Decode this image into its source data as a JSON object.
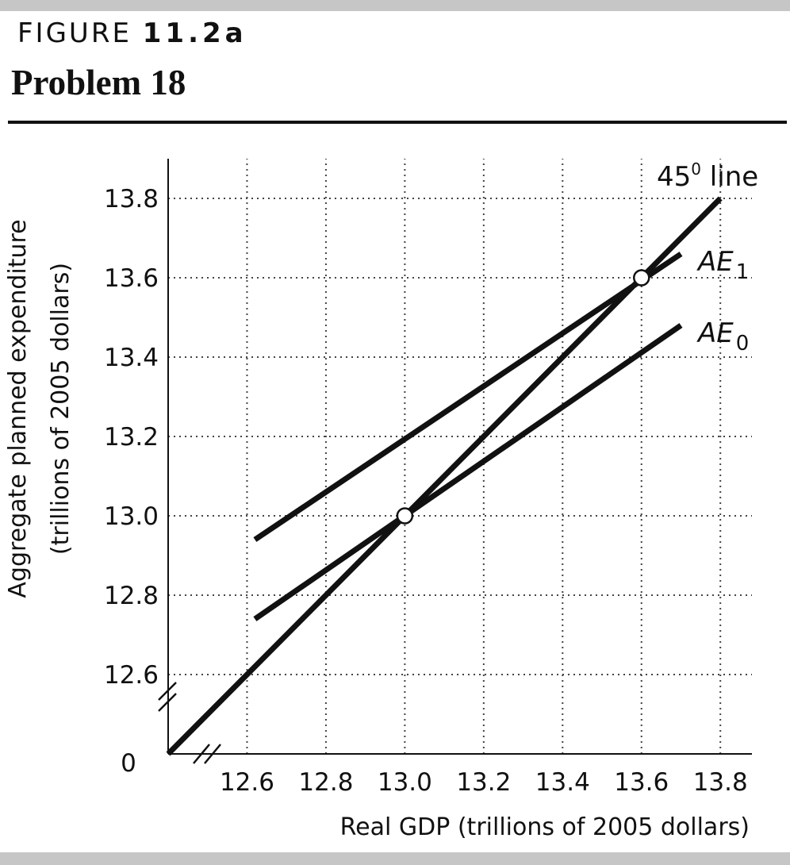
{
  "figure": {
    "label_prefix": "FIGURE",
    "label_number": "11.2a",
    "problem": "Problem 18"
  },
  "chart_data": {
    "type": "line",
    "xlabel": "Real GDP (trillions of 2005 dollars)",
    "ylabel": "Aggregate planned expenditure",
    "ylabel_sub": "(trillions of 2005 dollars)",
    "origin_label": "0",
    "x_ticks": [
      12.6,
      12.8,
      13.0,
      13.2,
      13.4,
      13.6,
      13.8
    ],
    "x_tick_labels": [
      "12.6",
      "12.8",
      "13.0",
      "13.2",
      "13.4",
      "13.6",
      "13.8"
    ],
    "y_ticks": [
      12.6,
      12.8,
      13.0,
      13.2,
      13.4,
      13.6,
      13.8
    ],
    "y_tick_labels": [
      "12.6",
      "12.8",
      "13.0",
      "13.2",
      "13.4",
      "13.6",
      "13.8"
    ],
    "xlim": [
      12.4,
      13.88
    ],
    "ylim": [
      12.4,
      13.9
    ],
    "axis_breaks": true,
    "grid": "dotted",
    "series": [
      {
        "name": "45° line",
        "label_main": "45",
        "label_sup": "0",
        "label_rest": " line",
        "x": [
          12.4,
          13.8
        ],
        "y": [
          12.4,
          13.8
        ]
      },
      {
        "name": "AE1",
        "label_main": "AE",
        "label_sub": "1",
        "x": [
          12.62,
          13.7
        ],
        "y": [
          12.94,
          13.66
        ]
      },
      {
        "name": "AE0",
        "label_main": "AE",
        "label_sub": "0",
        "x": [
          12.62,
          13.7
        ],
        "y": [
          12.74,
          13.48
        ]
      }
    ],
    "points": [
      {
        "x": 13.0,
        "y": 13.0
      },
      {
        "x": 13.6,
        "y": 13.6
      }
    ],
    "colors": {
      "line": "#111111",
      "grid": "#444444",
      "marker_fill": "#ffffff"
    }
  }
}
